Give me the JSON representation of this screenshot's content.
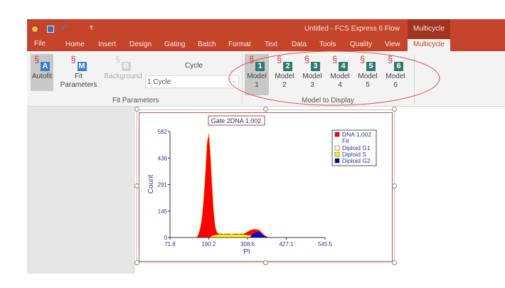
{
  "window": {
    "title": "Untitled - FCS Express 6 Flow",
    "context_tab": "Multicycle"
  },
  "quick_access": [
    {
      "icon": "app-icon"
    },
    {
      "icon": "save-icon"
    },
    {
      "icon": "undo-icon"
    },
    {
      "icon": "customize-icon",
      "label": "₹"
    }
  ],
  "tabs": [
    "File",
    "Home",
    "Insert",
    "Design",
    "Gating",
    "Batch",
    "Format",
    "Text",
    "Data",
    "Tools",
    "Quality",
    "View",
    "Multicycle"
  ],
  "active_tab": "Multicycle",
  "ribbon": {
    "fit_group": {
      "label": "Fit Parameters",
      "autofit": "Autofit",
      "fit_parameters": [
        "Fit",
        "Parameters"
      ],
      "background": "Background",
      "cycle_label": "Cycle",
      "cycle_value": "1 Cycle"
    },
    "model_group": {
      "label": "Model to Display",
      "models": [
        {
          "l1": "Model",
          "l2": "1"
        },
        {
          "l1": "Model",
          "l2": "2"
        },
        {
          "l1": "Model",
          "l2": "3"
        },
        {
          "l1": "Model",
          "l2": "4"
        },
        {
          "l1": "Model",
          "l2": "5"
        },
        {
          "l1": "Model",
          "l2": "6"
        }
      ],
      "selected": 1
    }
  },
  "colors": {
    "accent": "#c4452b",
    "dna": "#ff0000",
    "s": "#ffff00",
    "g2": "#0000cc",
    "annotation": "#e05060"
  },
  "chart_data": {
    "type": "area",
    "title": "Gate 2DNA 1.002",
    "xlabel": "PI",
    "ylabel": "Count",
    "xlim": [
      71.8,
      545.5
    ],
    "ylim": [
      0,
      582
    ],
    "xticks": [
      "71.8",
      "190.2",
      "308.6",
      "427.1",
      "545.5"
    ],
    "yticks": [
      "0",
      "145",
      "291",
      "436",
      "582"
    ],
    "legend": {
      "placement": "top-right",
      "entries": [
        "DNA 1.002",
        "Fit",
        "Diploid G1",
        "Diploid S",
        "Diploid G2"
      ]
    },
    "x": [
      150,
      155,
      160,
      165,
      170,
      175,
      180,
      185,
      190,
      195,
      200,
      205,
      210,
      215,
      220,
      225,
      230,
      235,
      240,
      245,
      250,
      255,
      260,
      265,
      270,
      275,
      280,
      285,
      290,
      295,
      300,
      305,
      310,
      315,
      320,
      325,
      330,
      335,
      340,
      345,
      350,
      355,
      360,
      365,
      370,
      375,
      380,
      385,
      390
    ],
    "series": [
      {
        "name": "DNA 1.002",
        "values": [
          0,
          5,
          25,
          60,
          120,
          220,
          360,
          520,
          575,
          470,
          300,
          150,
          60,
          30,
          22,
          20,
          22,
          18,
          21,
          19,
          22,
          20,
          18,
          21,
          20,
          22,
          19,
          20,
          22,
          20,
          23,
          28,
          32,
          38,
          42,
          45,
          46,
          44,
          45,
          40,
          32,
          22,
          14,
          8,
          4,
          2,
          1,
          0,
          0
        ]
      },
      {
        "name": "Diploid S",
        "values": [
          0,
          0,
          0,
          0,
          0,
          0,
          0,
          0,
          0,
          3,
          8,
          12,
          14,
          15,
          16,
          16,
          16,
          16,
          16,
          16,
          16,
          16,
          16,
          16,
          16,
          16,
          16,
          16,
          16,
          16,
          15,
          14,
          13,
          12,
          11,
          10,
          9,
          8,
          6,
          4,
          2,
          0,
          0,
          0,
          0,
          0,
          0,
          0,
          0
        ]
      },
      {
        "name": "Diploid G2",
        "values": [
          0,
          0,
          0,
          0,
          0,
          0,
          0,
          0,
          0,
          0,
          0,
          0,
          0,
          0,
          0,
          0,
          0,
          0,
          0,
          0,
          0,
          0,
          0,
          0,
          0,
          0,
          0,
          0,
          0,
          0,
          0,
          0,
          0,
          2,
          8,
          18,
          26,
          30,
          30,
          28,
          22,
          15,
          9,
          5,
          2,
          0,
          0,
          0,
          0
        ]
      }
    ]
  }
}
